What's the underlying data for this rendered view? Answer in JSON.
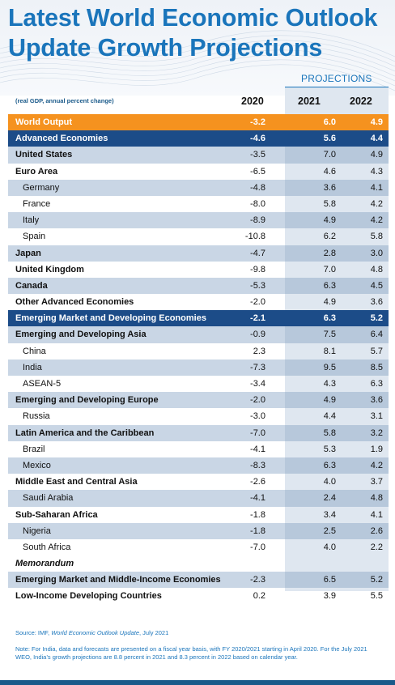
{
  "title_line1": "Latest World Economic Outlook",
  "title_line2": "Update Growth Projections",
  "projections_label": "PROJECTIONS",
  "unit_note": "(real GDP, annual percent change)",
  "years": [
    "2020",
    "2021",
    "2022"
  ],
  "rows": [
    {
      "label": "World Output",
      "v2020": "-3.2",
      "v2021": "6.0",
      "v2022": "4.9",
      "style": "orange"
    },
    {
      "label": "Advanced Economies",
      "v2020": "-4.6",
      "v2021": "5.6",
      "v2022": "4.4",
      "style": "navy"
    },
    {
      "label": "United States",
      "v2020": "-3.5",
      "v2021": "7.0",
      "v2022": "4.9",
      "style": "shade bold"
    },
    {
      "label": "Euro Area",
      "v2020": "-6.5",
      "v2021": "4.6",
      "v2022": "4.3",
      "style": "bold"
    },
    {
      "label": "Germany",
      "v2020": "-4.8",
      "v2021": "3.6",
      "v2022": "4.1",
      "style": "shade indent"
    },
    {
      "label": "France",
      "v2020": "-8.0",
      "v2021": "5.8",
      "v2022": "4.2",
      "style": "indent"
    },
    {
      "label": "Italy",
      "v2020": "-8.9",
      "v2021": "4.9",
      "v2022": "4.2",
      "style": "shade indent"
    },
    {
      "label": "Spain",
      "v2020": "-10.8",
      "v2021": "6.2",
      "v2022": "5.8",
      "style": "indent"
    },
    {
      "label": "Japan",
      "v2020": "-4.7",
      "v2021": "2.8",
      "v2022": "3.0",
      "style": "shade bold"
    },
    {
      "label": "United Kingdom",
      "v2020": "-9.8",
      "v2021": "7.0",
      "v2022": "4.8",
      "style": "bold"
    },
    {
      "label": "Canada",
      "v2020": "-5.3",
      "v2021": "6.3",
      "v2022": "4.5",
      "style": "shade bold"
    },
    {
      "label": "Other Advanced Economies",
      "v2020": "-2.0",
      "v2021": "4.9",
      "v2022": "3.6",
      "style": "bold"
    },
    {
      "label": "Emerging Market and Developing Economies",
      "v2020": "-2.1",
      "v2021": "6.3",
      "v2022": "5.2",
      "style": "navy"
    },
    {
      "label": "Emerging and Developing Asia",
      "v2020": "-0.9",
      "v2021": "7.5",
      "v2022": "6.4",
      "style": "shade bold"
    },
    {
      "label": "China",
      "v2020": "2.3",
      "v2021": "8.1",
      "v2022": "5.7",
      "style": "indent"
    },
    {
      "label": "India",
      "v2020": "-7.3",
      "v2021": "9.5",
      "v2022": "8.5",
      "style": "shade indent"
    },
    {
      "label": "ASEAN-5",
      "v2020": "-3.4",
      "v2021": "4.3",
      "v2022": "6.3",
      "style": "indent"
    },
    {
      "label": "Emerging and Developing Europe",
      "v2020": "-2.0",
      "v2021": "4.9",
      "v2022": "3.6",
      "style": "shade bold"
    },
    {
      "label": "Russia",
      "v2020": "-3.0",
      "v2021": "4.4",
      "v2022": "3.1",
      "style": "indent"
    },
    {
      "label": "Latin America and the Caribbean",
      "v2020": "-7.0",
      "v2021": "5.8",
      "v2022": "3.2",
      "style": "shade bold"
    },
    {
      "label": "Brazil",
      "v2020": "-4.1",
      "v2021": "5.3",
      "v2022": "1.9",
      "style": "indent"
    },
    {
      "label": "Mexico",
      "v2020": "-8.3",
      "v2021": "6.3",
      "v2022": "4.2",
      "style": "shade indent"
    },
    {
      "label": "Middle East and Central Asia",
      "v2020": "-2.6",
      "v2021": "4.0",
      "v2022": "3.7",
      "style": "bold"
    },
    {
      "label": "Saudi Arabia",
      "v2020": "-4.1",
      "v2021": "2.4",
      "v2022": "4.8",
      "style": "shade indent"
    },
    {
      "label": "Sub-Saharan Africa",
      "v2020": "-1.8",
      "v2021": "3.4",
      "v2022": "4.1",
      "style": "bold"
    },
    {
      "label": "Nigeria",
      "v2020": "-1.8",
      "v2021": "2.5",
      "v2022": "2.6",
      "style": "shade indent"
    },
    {
      "label": "South Africa",
      "v2020": "-7.0",
      "v2021": "4.0",
      "v2022": "2.2",
      "style": "indent"
    },
    {
      "label": "Memorandum",
      "v2020": "",
      "v2021": "",
      "v2022": "",
      "style": "bold italic"
    },
    {
      "label": "Emerging Market and Middle-Income Economies",
      "v2020": "-2.3",
      "v2021": "6.5",
      "v2022": "5.2",
      "style": "shade bold"
    },
    {
      "label": "Low-Income Developing Countries",
      "v2020": "0.2",
      "v2021": "3.9",
      "v2022": "5.5",
      "style": "bold"
    }
  ],
  "source_prefix": "Source: IMF, ",
  "source_title": "World Economic Outlook Update",
  "source_suffix": ", July 2021",
  "note": "Note: For India, data and forecasts are presented on a fiscal year basis, with FY 2020/2021 starting in April 2020. For the July 2021 WEO, India’s growth projections are 8.8 percent in 2021 and 8.3 percent in 2022 based on calendar year.",
  "colors": {
    "title_blue": "#1a75bb",
    "orange": "#f5921f",
    "navy": "#1c4c88",
    "shade": "#c9d6e5"
  }
}
